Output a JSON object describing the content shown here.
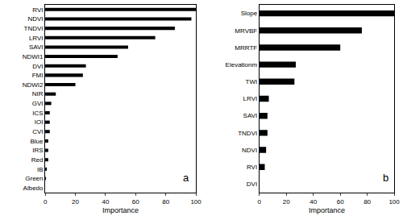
{
  "chart_data": [
    {
      "type": "bar",
      "orientation": "horizontal",
      "annotation": "a",
      "categories": [
        "RVI",
        "NDVI",
        "TNDVI",
        "LRVI",
        "SAVI",
        "NDWI1",
        "DVI",
        "FMI",
        "NDWI2",
        "NIR",
        "GVI",
        "ICS",
        "IOI",
        "CVI",
        "Blue",
        "IRS",
        "Red",
        "IB",
        "Green",
        "Albedo"
      ],
      "values": [
        100,
        97,
        86,
        73,
        55,
        48,
        27,
        25,
        20,
        7,
        4,
        3,
        3,
        3,
        2,
        2,
        2,
        1,
        0.5,
        0
      ],
      "color": "#000000",
      "xlabel": "Importance",
      "xlim": [
        0,
        100
      ],
      "xticks": [
        0,
        20,
        40,
        60,
        80,
        100
      ]
    },
    {
      "type": "bar",
      "orientation": "horizontal",
      "annotation": "b",
      "categories": [
        "Slope",
        "MRVBF",
        "MRRTF",
        "Elevationm",
        "TWI",
        "LRVI",
        "SAVI",
        "TNDVI",
        "NDVI",
        "RVI",
        "DVI"
      ],
      "values": [
        100,
        76,
        60,
        27,
        26,
        7,
        6,
        6,
        5,
        4,
        0
      ],
      "color": "#000000",
      "xlabel": "Importance",
      "xlim": [
        0,
        100
      ],
      "xticks": [
        0,
        20,
        40,
        60,
        80,
        100
      ]
    }
  ]
}
